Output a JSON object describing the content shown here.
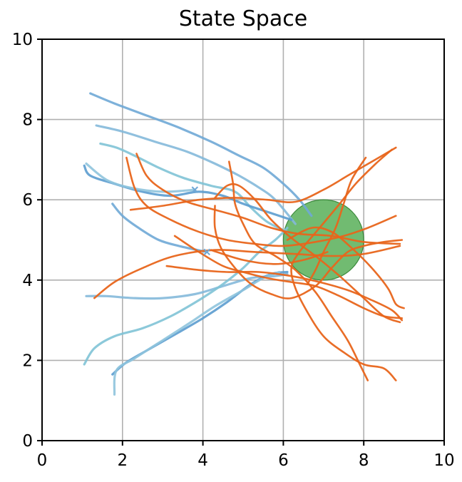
{
  "chart_data": {
    "type": "line",
    "title": "State Space",
    "xlabel": "",
    "ylabel": "",
    "xlim": [
      0,
      10
    ],
    "ylim": [
      0,
      10
    ],
    "xticks": [
      "0",
      "2",
      "4",
      "6",
      "8",
      "10"
    ],
    "yticks": [
      "0",
      "2",
      "4",
      "6",
      "8",
      "10"
    ],
    "grid": true,
    "colors": {
      "blue_family": [
        "#6fa8d6",
        "#84b9da",
        "#7fc3d6",
        "#5b9ccf",
        "#8fc4dd"
      ],
      "orange": "#e8651b",
      "goal_fill": "#4daa4d",
      "goal_edge": "#3d8a3d"
    },
    "goal_region": {
      "center": [
        7.0,
        5.0
      ],
      "radius": 1.0
    },
    "blue_markers": [
      [
        3.8,
        6.25
      ],
      [
        4.1,
        4.7
      ]
    ],
    "series": [
      {
        "group": "blue",
        "points": [
          [
            1.2,
            8.65
          ],
          [
            1.8,
            8.4
          ],
          [
            2.6,
            8.1
          ],
          [
            3.4,
            7.8
          ],
          [
            4.2,
            7.45
          ],
          [
            4.9,
            7.1
          ],
          [
            5.5,
            6.8
          ],
          [
            6.0,
            6.4
          ],
          [
            6.4,
            6.0
          ],
          [
            6.7,
            5.6
          ]
        ]
      },
      {
        "group": "blue",
        "points": [
          [
            1.35,
            7.85
          ],
          [
            2.0,
            7.7
          ],
          [
            2.8,
            7.45
          ],
          [
            3.6,
            7.2
          ],
          [
            4.3,
            6.9
          ],
          [
            4.9,
            6.6
          ],
          [
            5.4,
            6.3
          ],
          [
            5.8,
            6.0
          ],
          [
            6.3,
            5.4
          ]
        ]
      },
      {
        "group": "blue",
        "points": [
          [
            1.45,
            7.4
          ],
          [
            1.85,
            7.3
          ],
          [
            2.3,
            7.1
          ],
          [
            2.9,
            6.8
          ],
          [
            3.5,
            6.55
          ],
          [
            4.2,
            6.35
          ],
          [
            4.8,
            6.2
          ],
          [
            5.2,
            5.8
          ],
          [
            5.6,
            5.45
          ],
          [
            6.1,
            5.2
          ]
        ]
      },
      {
        "group": "blue",
        "points": [
          [
            1.05,
            6.85
          ],
          [
            1.2,
            6.6
          ],
          [
            1.8,
            6.4
          ],
          [
            2.5,
            6.2
          ],
          [
            3.2,
            6.1
          ],
          [
            3.9,
            6.2
          ],
          [
            4.5,
            6.1
          ],
          [
            5.0,
            5.9
          ],
          [
            5.6,
            5.7
          ],
          [
            6.2,
            5.5
          ]
        ]
      },
      {
        "group": "blue",
        "points": [
          [
            1.1,
            6.9
          ],
          [
            1.6,
            6.5
          ],
          [
            2.2,
            6.3
          ],
          [
            3.0,
            6.2
          ],
          [
            3.8,
            6.25
          ]
        ]
      },
      {
        "group": "blue",
        "points": [
          [
            1.75,
            5.9
          ],
          [
            2.0,
            5.6
          ],
          [
            2.4,
            5.3
          ],
          [
            2.9,
            5.0
          ],
          [
            3.4,
            4.85
          ],
          [
            4.1,
            4.7
          ]
        ]
      },
      {
        "group": "blue",
        "points": [
          [
            1.1,
            3.6
          ],
          [
            1.6,
            3.6
          ],
          [
            2.3,
            3.55
          ],
          [
            3.0,
            3.55
          ],
          [
            3.8,
            3.65
          ],
          [
            4.5,
            3.85
          ],
          [
            5.2,
            4.05
          ],
          [
            5.8,
            4.1
          ],
          [
            6.1,
            4.15
          ]
        ]
      },
      {
        "group": "blue",
        "points": [
          [
            1.05,
            1.9
          ],
          [
            1.3,
            2.3
          ],
          [
            1.8,
            2.6
          ],
          [
            2.5,
            2.8
          ],
          [
            3.2,
            3.1
          ],
          [
            3.9,
            3.5
          ],
          [
            4.5,
            3.9
          ],
          [
            5.0,
            4.3
          ],
          [
            5.4,
            4.7
          ],
          [
            5.8,
            5.0
          ],
          [
            6.1,
            5.3
          ]
        ]
      },
      {
        "group": "blue",
        "points": [
          [
            1.75,
            1.65
          ],
          [
            2.1,
            1.95
          ],
          [
            2.7,
            2.3
          ],
          [
            3.4,
            2.7
          ],
          [
            4.0,
            3.05
          ],
          [
            4.6,
            3.45
          ],
          [
            5.2,
            3.9
          ],
          [
            5.7,
            4.15
          ],
          [
            6.1,
            4.2
          ]
        ]
      },
      {
        "group": "blue",
        "points": [
          [
            1.8,
            1.15
          ],
          [
            1.85,
            1.75
          ],
          [
            2.3,
            2.05
          ],
          [
            3.0,
            2.5
          ],
          [
            3.7,
            2.95
          ],
          [
            4.3,
            3.35
          ],
          [
            5.0,
            3.75
          ],
          [
            5.5,
            4.05
          ],
          [
            5.9,
            4.2
          ]
        ]
      },
      {
        "group": "orange",
        "points": [
          [
            1.3,
            3.55
          ],
          [
            1.8,
            3.95
          ],
          [
            2.5,
            4.3
          ],
          [
            3.3,
            4.6
          ],
          [
            4.3,
            4.75
          ],
          [
            5.3,
            4.7
          ],
          [
            6.3,
            4.65
          ],
          [
            7.2,
            4.6
          ],
          [
            8.0,
            4.65
          ],
          [
            8.9,
            4.85
          ]
        ]
      },
      {
        "group": "orange",
        "points": [
          [
            2.2,
            5.75
          ],
          [
            3.0,
            5.85
          ],
          [
            3.9,
            6.0
          ],
          [
            4.8,
            6.05
          ],
          [
            5.6,
            6.0
          ],
          [
            6.3,
            5.95
          ],
          [
            7.0,
            6.25
          ],
          [
            7.6,
            6.6
          ],
          [
            8.2,
            6.95
          ],
          [
            8.8,
            7.3
          ]
        ]
      },
      {
        "group": "orange",
        "points": [
          [
            2.35,
            7.15
          ],
          [
            2.6,
            6.6
          ],
          [
            3.0,
            6.25
          ],
          [
            3.6,
            5.95
          ],
          [
            4.3,
            5.75
          ],
          [
            5.0,
            5.55
          ],
          [
            5.7,
            5.3
          ],
          [
            6.4,
            5.15
          ],
          [
            7.2,
            5.1
          ],
          [
            8.0,
            4.95
          ],
          [
            8.9,
            4.9
          ]
        ]
      },
      {
        "group": "orange",
        "points": [
          [
            2.1,
            7.05
          ],
          [
            2.3,
            6.3
          ],
          [
            2.6,
            5.85
          ],
          [
            3.2,
            5.5
          ],
          [
            3.9,
            5.2
          ],
          [
            4.6,
            5.0
          ],
          [
            5.3,
            4.9
          ],
          [
            6.0,
            4.85
          ],
          [
            6.8,
            4.95
          ],
          [
            7.5,
            5.1
          ],
          [
            8.1,
            5.3
          ],
          [
            8.8,
            5.6
          ]
        ]
      },
      {
        "group": "orange",
        "points": [
          [
            3.1,
            4.35
          ],
          [
            3.9,
            4.25
          ],
          [
            4.6,
            4.2
          ],
          [
            5.4,
            4.2
          ],
          [
            6.2,
            4.1
          ],
          [
            6.9,
            3.95
          ],
          [
            7.6,
            3.75
          ],
          [
            8.2,
            3.5
          ],
          [
            8.7,
            3.25
          ],
          [
            8.95,
            3.0
          ]
        ]
      },
      {
        "group": "orange",
        "points": [
          [
            3.3,
            5.1
          ],
          [
            3.9,
            4.7
          ],
          [
            4.5,
            4.35
          ],
          [
            5.0,
            4.2
          ],
          [
            5.6,
            4.05
          ],
          [
            6.2,
            3.95
          ],
          [
            6.8,
            3.85
          ],
          [
            7.4,
            3.6
          ],
          [
            8.0,
            3.3
          ],
          [
            8.5,
            3.1
          ],
          [
            8.95,
            3.05
          ]
        ]
      },
      {
        "group": "orange",
        "points": [
          [
            4.65,
            6.95
          ],
          [
            4.75,
            6.4
          ],
          [
            4.8,
            5.9
          ],
          [
            5.0,
            5.4
          ],
          [
            5.3,
            4.9
          ],
          [
            5.8,
            4.6
          ],
          [
            6.3,
            4.25
          ],
          [
            6.8,
            3.7
          ],
          [
            7.2,
            3.1
          ],
          [
            7.6,
            2.5
          ],
          [
            7.9,
            1.9
          ],
          [
            8.1,
            1.5
          ]
        ]
      },
      {
        "group": "orange",
        "points": [
          [
            4.3,
            6.05
          ],
          [
            4.6,
            6.35
          ],
          [
            4.9,
            6.35
          ],
          [
            5.3,
            6.0
          ],
          [
            5.7,
            5.5
          ],
          [
            6.2,
            5.05
          ],
          [
            6.8,
            4.6
          ],
          [
            7.4,
            4.1
          ],
          [
            8.0,
            3.55
          ],
          [
            8.5,
            3.1
          ],
          [
            8.9,
            2.95
          ]
        ]
      },
      {
        "group": "orange",
        "points": [
          [
            4.3,
            5.85
          ],
          [
            4.3,
            5.3
          ],
          [
            4.45,
            4.8
          ],
          [
            4.8,
            4.3
          ],
          [
            5.2,
            3.9
          ],
          [
            5.7,
            3.65
          ],
          [
            6.2,
            3.55
          ],
          [
            6.8,
            3.85
          ],
          [
            7.2,
            4.3
          ],
          [
            7.6,
            4.7
          ],
          [
            8.0,
            4.85
          ],
          [
            8.5,
            4.95
          ],
          [
            8.95,
            5.0
          ]
        ]
      },
      {
        "group": "orange",
        "points": [
          [
            8.7,
            7.25
          ],
          [
            8.3,
            6.9
          ],
          [
            7.8,
            6.4
          ],
          [
            7.4,
            5.9
          ],
          [
            6.9,
            5.3
          ],
          [
            6.4,
            4.7
          ],
          [
            6.2,
            4.3
          ],
          [
            6.3,
            3.8
          ],
          [
            6.6,
            3.2
          ],
          [
            7.0,
            2.6
          ],
          [
            7.5,
            2.2
          ],
          [
            8.0,
            1.9
          ],
          [
            8.5,
            1.8
          ],
          [
            8.8,
            1.5
          ]
        ]
      },
      {
        "group": "orange",
        "points": [
          [
            8.05,
            7.05
          ],
          [
            7.7,
            6.5
          ],
          [
            7.5,
            5.9
          ],
          [
            7.3,
            5.3
          ],
          [
            7.0,
            4.7
          ],
          [
            6.8,
            4.25
          ],
          [
            6.6,
            3.9
          ]
        ]
      },
      {
        "group": "orange",
        "points": [
          [
            6.1,
            5.0
          ],
          [
            6.7,
            5.3
          ],
          [
            7.2,
            5.2
          ],
          [
            7.7,
            4.8
          ],
          [
            8.2,
            4.3
          ],
          [
            8.6,
            3.8
          ],
          [
            8.8,
            3.4
          ],
          [
            9.0,
            3.3
          ]
        ]
      },
      {
        "group": "orange",
        "points": [
          [
            4.2,
            4.75
          ],
          [
            5.0,
            4.5
          ],
          [
            5.8,
            4.4
          ],
          [
            6.5,
            4.5
          ],
          [
            7.1,
            4.7
          ]
        ]
      }
    ]
  }
}
